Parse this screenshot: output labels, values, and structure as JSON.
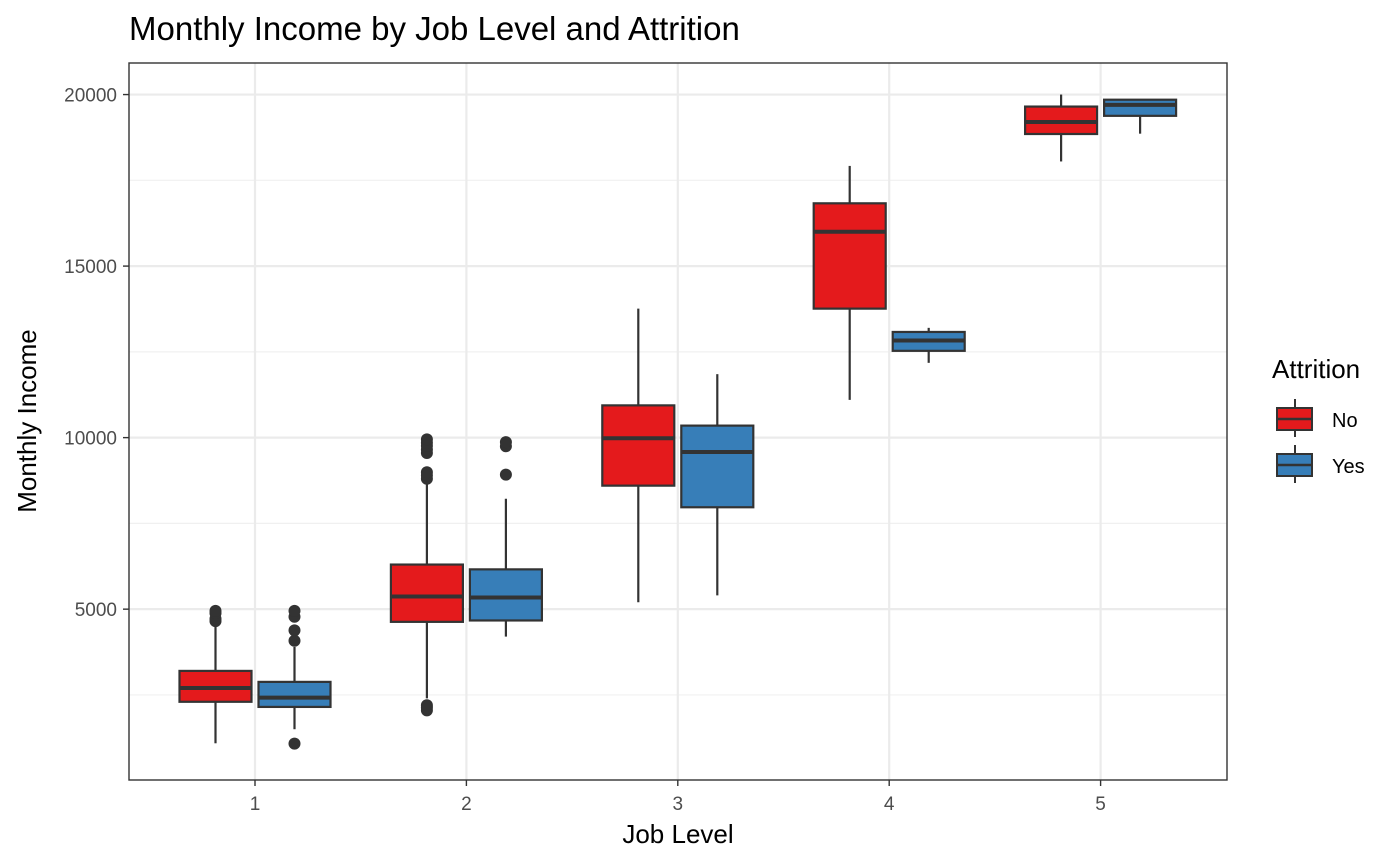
{
  "chart_data": {
    "type": "boxplot",
    "title": "Monthly Income by Job Level and Attrition",
    "xlabel": "Job Level",
    "ylabel": "Monthly Income",
    "categories": [
      "1",
      "2",
      "3",
      "4",
      "5"
    ],
    "ylim": [
      20,
      20920
    ],
    "yticks": [
      5000,
      10000,
      15000,
      20000
    ],
    "grid": true,
    "legend": {
      "title": "Attrition",
      "position": "right",
      "entries": [
        {
          "label": "No",
          "color": "#E41A1C"
        },
        {
          "label": "Yes",
          "color": "#377EB8"
        }
      ]
    },
    "series": [
      {
        "name": "No",
        "color": "#E41A1C",
        "boxes": [
          {
            "category": "1",
            "whisker_low": 1090,
            "q1": 2300,
            "median": 2700,
            "q3": 3200,
            "whisker_high": 4480,
            "outliers": [
              4650,
              4720,
              4880,
              4950
            ]
          },
          {
            "category": "2",
            "whisker_low": 2400,
            "q1": 4630,
            "median": 5370,
            "q3": 6300,
            "whisker_high": 8740,
            "outliers": [
              2050,
              2130,
              2200,
              8800,
              8900,
              8990,
              9550,
              9650,
              9760,
              9850,
              9950
            ]
          },
          {
            "category": "3",
            "whisker_low": 5200,
            "q1": 8600,
            "median": 9980,
            "q3": 10940,
            "whisker_high": 13760,
            "outliers": []
          },
          {
            "category": "4",
            "whisker_low": 11100,
            "q1": 13760,
            "median": 16000,
            "q3": 16830,
            "whisker_high": 17920,
            "outliers": []
          },
          {
            "category": "5",
            "whisker_low": 18050,
            "q1": 18850,
            "median": 19200,
            "q3": 19650,
            "whisker_high": 20000,
            "outliers": []
          }
        ]
      },
      {
        "name": "Yes",
        "color": "#377EB8",
        "boxes": [
          {
            "category": "1",
            "whisker_low": 1500,
            "q1": 2150,
            "median": 2420,
            "q3": 2880,
            "whisker_high": 3900,
            "outliers": [
              1080,
              4080,
              4380,
              4780,
              4950
            ]
          },
          {
            "category": "2",
            "whisker_low": 4200,
            "q1": 4670,
            "median": 5340,
            "q3": 6160,
            "whisker_high": 8220,
            "outliers": [
              8920,
              9750,
              9870
            ]
          },
          {
            "category": "3",
            "whisker_low": 5400,
            "q1": 7970,
            "median": 9580,
            "q3": 10350,
            "whisker_high": 11850,
            "outliers": []
          },
          {
            "category": "4",
            "whisker_low": 12180,
            "q1": 12530,
            "median": 12830,
            "q3": 13080,
            "whisker_high": 13200,
            "outliers": []
          },
          {
            "category": "5",
            "whisker_low": 18860,
            "q1": 19380,
            "median": 19700,
            "q3": 19850,
            "whisker_high": 19870,
            "outliers": []
          }
        ]
      }
    ]
  }
}
